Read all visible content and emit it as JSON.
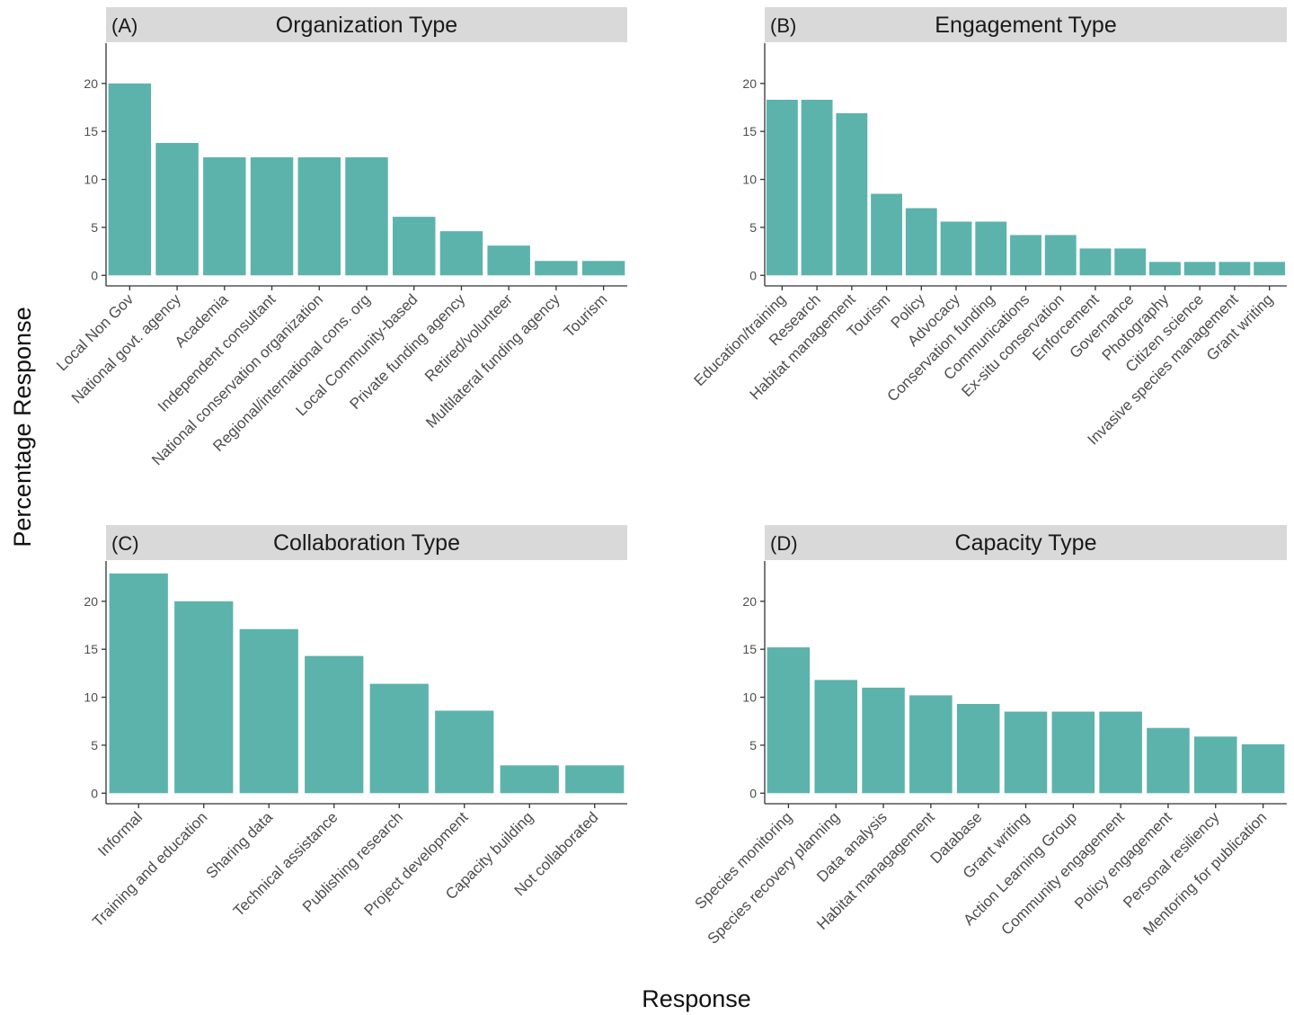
{
  "figure": {
    "ylabel": "Percentage Response",
    "xlabel": "Response",
    "bar_color": "#5bb3ac",
    "strip_color": "#d9d9d9"
  },
  "chart_data": [
    {
      "type": "bar",
      "panel_label": "(A)",
      "title": "Organization Type",
      "categories": [
        "Local Non Gov",
        "National govt. agency",
        "Academia",
        "Independent consultant",
        "National conservation organization",
        "Regional/international cons. org",
        "Local Community-based",
        "Private funding agency",
        "Retired/volunteer",
        "Multilateral funding agency",
        "Tourism"
      ],
      "values": [
        20.0,
        13.8,
        12.3,
        12.3,
        12.3,
        12.3,
        6.1,
        4.6,
        3.1,
        1.5,
        1.5
      ],
      "ylim": [
        -1.1,
        24.2
      ],
      "yticks": [
        0,
        5,
        10,
        15,
        20
      ]
    },
    {
      "type": "bar",
      "panel_label": "(B)",
      "title": "Engagement Type",
      "categories": [
        "Education/training",
        "Research",
        "Habitat management",
        "Tourism",
        "Policy",
        "Advocacy",
        "Conservation funding",
        "Communications",
        "Ex-situ conservation",
        "Enforcement",
        "Governance",
        "Photography",
        "Citizen science",
        "Invasive species management",
        "Grant writing"
      ],
      "values": [
        18.3,
        18.3,
        16.9,
        8.5,
        7.0,
        5.6,
        5.6,
        4.2,
        4.2,
        2.8,
        2.8,
        1.4,
        1.4,
        1.4,
        1.4
      ],
      "ylim": [
        -1.1,
        24.2
      ],
      "yticks": [
        0,
        5,
        10,
        15,
        20
      ]
    },
    {
      "type": "bar",
      "panel_label": "(C)",
      "title": "Collaboration Type",
      "categories": [
        "Informal",
        "Training and education",
        "Sharing data",
        "Technical assistance",
        "Publishing research",
        "Project development",
        "Capacity building",
        "Not collaborated"
      ],
      "values": [
        22.9,
        20.0,
        17.1,
        14.3,
        11.4,
        8.6,
        2.9,
        2.9
      ],
      "ylim": [
        -1.1,
        24.2
      ],
      "yticks": [
        0,
        5,
        10,
        15,
        20
      ]
    },
    {
      "type": "bar",
      "panel_label": "(D)",
      "title": "Capacity Type",
      "categories": [
        "Species monitoring",
        "Species recovery planning",
        "Data analysis",
        "Habitat managagement",
        "Database",
        "Grant writing",
        "Action Learning Group",
        "Community engagement",
        "Policy engagement",
        "Personal resiliency",
        "Mentoring for publication"
      ],
      "values": [
        15.2,
        11.8,
        11.0,
        10.2,
        9.3,
        8.5,
        8.5,
        8.5,
        6.8,
        5.9,
        5.1
      ],
      "ylim": [
        -1.1,
        24.2
      ],
      "yticks": [
        0,
        5,
        10,
        15,
        20
      ]
    }
  ]
}
